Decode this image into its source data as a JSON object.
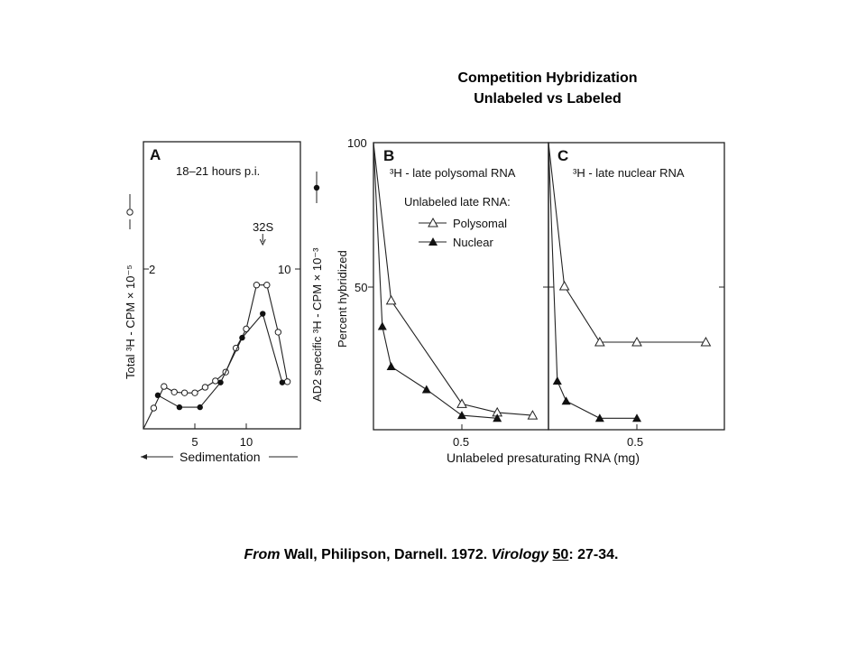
{
  "header": {
    "title_line1": "Competition Hybridization",
    "title_line2": "Unlabeled vs Labeled"
  },
  "citation": {
    "from": "From",
    "authors": " Wall, Philipson, Darnell. 1972. ",
    "journal": "Virology",
    "space": " ",
    "volume": "50",
    "pages": ": 27-34."
  },
  "chart_data": [
    {
      "type": "line",
      "panel": "A",
      "annotation": "18–21 hours p.i.",
      "marker_label": "32S",
      "xlabel": "Sedimentation",
      "xticks": [
        5,
        10
      ],
      "xlim": [
        0,
        14.5
      ],
      "ylabel_left": "Total ³H - CPM × 10⁻⁵",
      "ylabel_right": "AD2 specific ³H - CPM × 10⁻³",
      "yticks_left": [
        2
      ],
      "ylim_left": [
        0,
        3.6
      ],
      "yticks_right": [
        10
      ],
      "ylim_right": [
        0,
        18
      ],
      "marker_x": 11.6,
      "series": [
        {
          "name": "Total (open circles, left axis)",
          "marker": "open-circle",
          "axis": "left",
          "x": [
            0,
            1,
            2,
            3,
            4,
            5,
            6,
            7,
            8,
            9,
            10,
            11,
            12,
            13.1,
            14
          ],
          "y": [
            0,
            0.26,
            0.53,
            0.46,
            0.45,
            0.45,
            0.52,
            0.6,
            0.71,
            1.01,
            1.25,
            1.8,
            1.8,
            1.21,
            0.59
          ]
        },
        {
          "name": "AD2 specific (filled circles, right axis)",
          "marker": "filled-circle",
          "axis": "right",
          "x": [
            1.4,
            3.5,
            5.5,
            7.5,
            9.6,
            11.6,
            13.5
          ],
          "y": [
            2.1,
            1.35,
            1.35,
            2.9,
            5.7,
            7.2,
            2.9
          ]
        }
      ]
    },
    {
      "type": "line",
      "panel": "B",
      "subtitle": "³H - late polysomal RNA",
      "legend_title": "Unlabeled late RNA:",
      "legend": [
        "Polysomal",
        "Nuclear"
      ],
      "ylabel": "Percent hybridized",
      "yticks": [
        100,
        50
      ],
      "ylim": [
        0,
        100
      ],
      "xticks": [
        0.5
      ],
      "xlim": [
        0,
        1.0
      ],
      "series": [
        {
          "name": "Polysomal",
          "marker": "open-triangle",
          "x": [
            0,
            0.1,
            0.5,
            0.7,
            0.9
          ],
          "y": [
            100,
            45,
            9,
            6,
            5
          ]
        },
        {
          "name": "Nuclear",
          "marker": "filled-triangle",
          "x": [
            0,
            0.05,
            0.1,
            0.3,
            0.5,
            0.7
          ],
          "y": [
            100,
            36,
            22,
            14,
            5,
            4
          ]
        }
      ]
    },
    {
      "type": "line",
      "panel": "C",
      "subtitle": "³H - late nuclear RNA",
      "xlabel": "Unlabeled presaturating RNA (mg)",
      "xticks": [
        0.5
      ],
      "xlim": [
        0,
        1.0
      ],
      "ylim": [
        0,
        100
      ],
      "series": [
        {
          "name": "Polysomal",
          "marker": "open-triangle",
          "x": [
            0,
            0.09,
            0.29,
            0.5,
            0.89
          ],
          "y": [
            100,
            50,
            30.5,
            30.5,
            30.5
          ]
        },
        {
          "name": "Nuclear",
          "marker": "filled-triangle",
          "x": [
            0,
            0.05,
            0.1,
            0.29,
            0.5
          ],
          "y": [
            100,
            17,
            10,
            4,
            4
          ]
        }
      ]
    }
  ]
}
